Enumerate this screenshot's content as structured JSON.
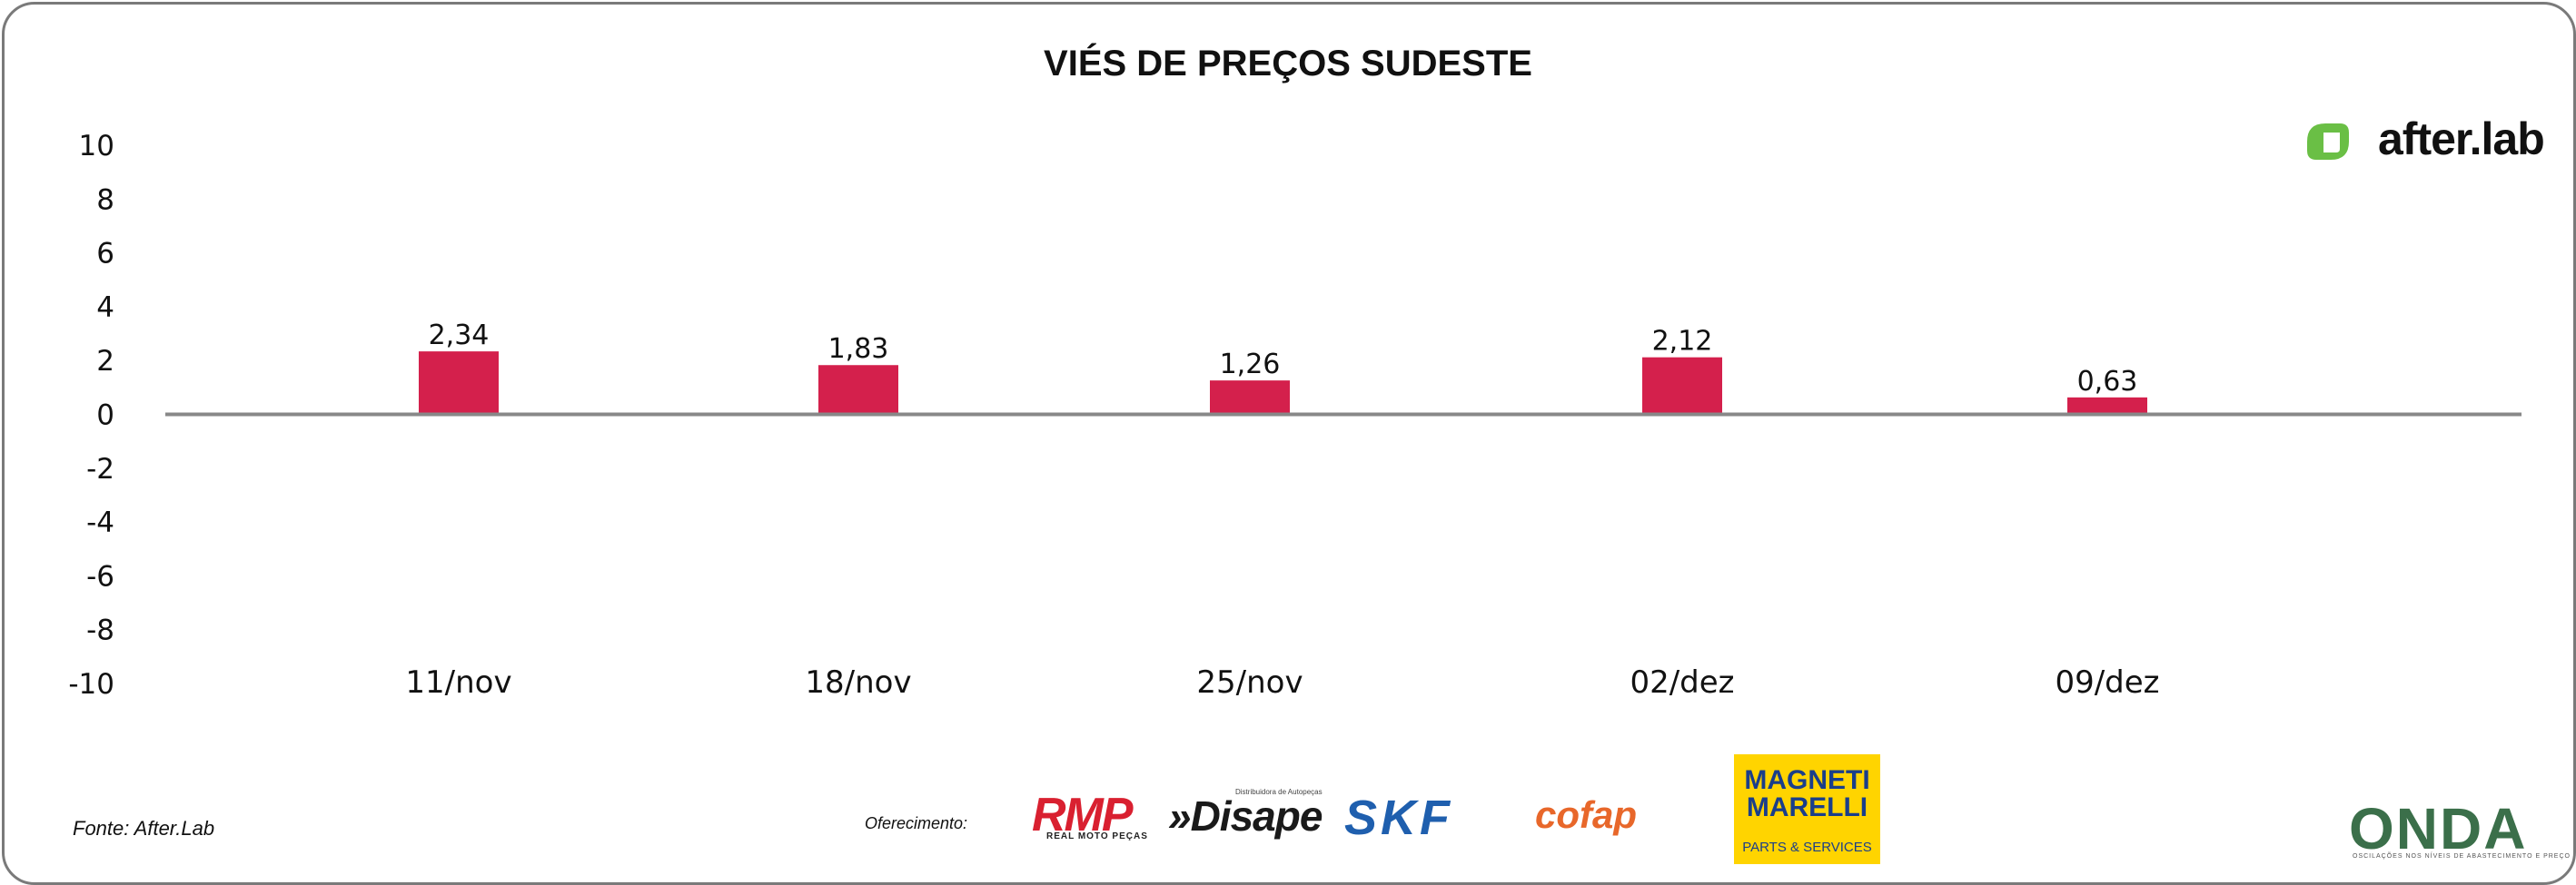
{
  "header": {
    "title": "VIÉS DE PREÇOS SUDESTE"
  },
  "footer": {
    "source": "Fonte: After.Lab",
    "sponsor_label": "Oferecimento:",
    "sponsors": {
      "rmp": "RMP",
      "rmp_sub": "REAL MOTO PEÇAS",
      "disape": "»Disape",
      "disape_sub": "Distribuidora de Autopeças",
      "skf": "SKF",
      "cofap": "cofap",
      "magneti_top": "MAGNETI MARELLI",
      "magneti_bottom": "PARTS & SERVICES",
      "onda": "ONDA",
      "onda_sub": "OSCILAÇÕES NOS NÍVEIS DE ABASTECIMENTO E PREÇO"
    }
  },
  "brand": {
    "name": "after.lab",
    "icon": "afterlab-logo-icon",
    "color": "#6abf45"
  },
  "chart_data": {
    "type": "bar",
    "title": "VIÉS DE PREÇOS SUDESTE",
    "categories": [
      "11/nov",
      "18/nov",
      "25/nov",
      "02/dez",
      "09/dez"
    ],
    "values": [
      2.34,
      1.83,
      1.26,
      2.12,
      0.63
    ],
    "value_labels": [
      "2,34",
      "1,83",
      "1,26",
      "2,12",
      "0,63"
    ],
    "xlabel": "",
    "ylabel": "",
    "ylim": [
      -10,
      10
    ],
    "yticks": [
      10,
      8,
      6,
      4,
      2,
      0,
      -2,
      -4,
      -6,
      -8,
      -10
    ],
    "bar_color": "#d4204c",
    "axis_color": "#888888",
    "grid": false,
    "legend": "none"
  }
}
